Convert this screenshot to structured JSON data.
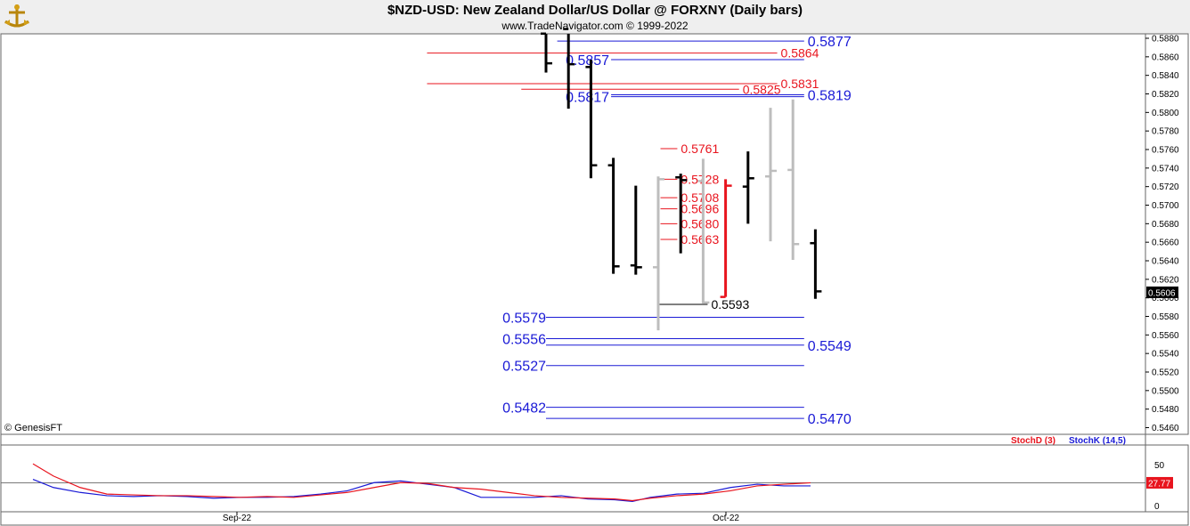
{
  "header": {
    "title": "$NZD-USD:  New Zealand Dollar/US Dollar @ FORXNY  (Daily bars)",
    "credit": "www.TradeNavigator.com © 1999-2022"
  },
  "copyright": "© GenesisFT",
  "colors": {
    "blue_level": "#1a1ad6",
    "red_level": "#e8141e",
    "bar_black": "#000000",
    "bar_gray": "#bdbdbd",
    "bar_red": "#e8141e"
  },
  "chart_data": [
    {
      "type": "ohlc",
      "ylim": [
        0.5455,
        0.5893
      ],
      "y_ticks": [
        "0.5880",
        "0.5860",
        "0.5840",
        "0.5820",
        "0.5800",
        "0.5780",
        "0.5760",
        "0.5740",
        "0.5720",
        "0.5700",
        "0.5680",
        "0.5660",
        "0.5640",
        "0.5620",
        "0.5600",
        "0.5580",
        "0.5560",
        "0.5540",
        "0.5520",
        "0.5500",
        "0.5480",
        "0.5460"
      ],
      "last_price": "0.5606",
      "x_labels": [
        "Sep-22",
        "Oct-22"
      ],
      "bars": [
        {
          "open": 0.5885,
          "high": 0.5895,
          "low": 0.5843,
          "close": 0.5853,
          "color": "black"
        },
        {
          "open": 0.589,
          "high": 0.5895,
          "low": 0.5804,
          "close": 0.5852,
          "color": "black"
        },
        {
          "open": 0.5849,
          "high": 0.5857,
          "low": 0.5729,
          "close": 0.5743,
          "color": "black"
        },
        {
          "open": 0.5743,
          "high": 0.5751,
          "low": 0.5626,
          "close": 0.5634,
          "color": "black"
        },
        {
          "open": 0.5635,
          "high": 0.5721,
          "low": 0.5625,
          "close": 0.5633,
          "color": "black"
        },
        {
          "open": 0.5633,
          "high": 0.5731,
          "low": 0.5565,
          "close": 0.5728,
          "color": "gray"
        },
        {
          "open": 0.573,
          "high": 0.5734,
          "low": 0.5648,
          "close": 0.5727,
          "color": "black"
        },
        {
          "open": 0.5726,
          "high": 0.575,
          "low": 0.5594,
          "close": 0.5595,
          "color": "gray"
        },
        {
          "open": 0.5601,
          "high": 0.5728,
          "low": 0.5601,
          "close": 0.5721,
          "color": "red"
        },
        {
          "open": 0.572,
          "high": 0.5758,
          "low": 0.568,
          "close": 0.5729,
          "color": "black"
        },
        {
          "open": 0.5731,
          "high": 0.5805,
          "low": 0.5661,
          "close": 0.5737,
          "color": "gray"
        },
        {
          "open": 0.5738,
          "high": 0.5814,
          "low": 0.5641,
          "close": 0.5658,
          "color": "gray"
        },
        {
          "open": 0.5659,
          "high": 0.5674,
          "low": 0.5599,
          "close": 0.5607,
          "color": "black"
        }
      ],
      "levels": [
        {
          "label": "0.5877",
          "value": 0.5877,
          "color": "blue",
          "x_from": 0.5,
          "x_to": 11.5,
          "label_side": "right"
        },
        {
          "label": "0.5864",
          "value": 0.5864,
          "color": "red",
          "x_from": -5.3,
          "x_to": 10.3,
          "label_side": "right_inline"
        },
        {
          "label": "0.5857",
          "value": 0.5857,
          "color": "blue",
          "x_from": 2.9,
          "x_to": 11.5,
          "label_side": "left"
        },
        {
          "label": "0.5831",
          "value": 0.5831,
          "color": "red",
          "x_from": -5.3,
          "x_to": 10.3,
          "label_side": "right_inline"
        },
        {
          "label": "0.5825",
          "value": 0.5825,
          "color": "red",
          "x_from": -1.1,
          "x_to": 8.6,
          "label_side": "right_inline"
        },
        {
          "label": "0.5819",
          "value": 0.5819,
          "color": "blue",
          "x_from": 2.9,
          "x_to": 11.5,
          "label_side": "right"
        },
        {
          "label": "0.5817",
          "value": 0.5817,
          "color": "blue",
          "x_from": 2.9,
          "x_to": 11.5,
          "label_side": "left"
        },
        {
          "label": "0.5761",
          "value": 0.5761,
          "color": "red",
          "x_from": 5.1,
          "x_to": 5.85,
          "label_side": "right_inline"
        },
        {
          "label": "0.5728",
          "value": 0.5728,
          "color": "red",
          "x_from": 5.1,
          "x_to": 5.85,
          "label_side": "right_inline"
        },
        {
          "label": "0.5708",
          "value": 0.5708,
          "color": "red",
          "x_from": 5.1,
          "x_to": 5.85,
          "label_side": "right_inline"
        },
        {
          "label": "0.5696",
          "value": 0.5696,
          "color": "red",
          "x_from": 5.1,
          "x_to": 5.85,
          "label_side": "right_inline"
        },
        {
          "label": "0.5680",
          "value": 0.568,
          "color": "red",
          "x_from": 5.1,
          "x_to": 5.85,
          "label_side": "right_inline"
        },
        {
          "label": "0.5663",
          "value": 0.5663,
          "color": "red",
          "x_from": 5.1,
          "x_to": 5.85,
          "label_side": "right_inline"
        },
        {
          "label": "0.5593",
          "value": 0.5593,
          "color": "black",
          "x_from": 5.0,
          "x_to": 7.2,
          "label_side": "right_inline"
        },
        {
          "label": "0.5579",
          "value": 0.5579,
          "color": "blue",
          "x_from": 0.0,
          "x_to": 11.5,
          "label_side": "left"
        },
        {
          "label": "0.5556",
          "value": 0.5556,
          "color": "blue",
          "x_from": 0.0,
          "x_to": 11.5,
          "label_side": "left"
        },
        {
          "label": "0.5549",
          "value": 0.5549,
          "color": "blue",
          "x_from": 0.0,
          "x_to": 11.5,
          "label_side": "right"
        },
        {
          "label": "0.5527",
          "value": 0.5527,
          "color": "blue",
          "x_from": 0.0,
          "x_to": 11.5,
          "label_side": "left"
        },
        {
          "label": "0.5482",
          "value": 0.5482,
          "color": "blue",
          "x_from": 0.0,
          "x_to": 11.5,
          "label_side": "left"
        },
        {
          "label": "0.5470",
          "value": 0.547,
          "color": "blue",
          "x_from": 0.0,
          "x_to": 11.5,
          "label_side": "right"
        }
      ]
    },
    {
      "type": "line",
      "legend": [
        {
          "name": "StochD (3)",
          "color": "#e8141e"
        },
        {
          "name": "StochK (14,5)",
          "color": "#1a1ad6"
        }
      ],
      "y_ticks": [
        "50",
        "0"
      ],
      "last_value": "27.77",
      "ylim": [
        0,
        100
      ],
      "x_positions": [
        37,
        60,
        90,
        120,
        150,
        180,
        210,
        240,
        270,
        300,
        330,
        360,
        390,
        420,
        450,
        480,
        510,
        540,
        570,
        600,
        630,
        660,
        690,
        710,
        730,
        760,
        790,
        820,
        850,
        880,
        910
      ],
      "series": [
        {
          "name": "StochK (14,5)",
          "color": "#1a1ad6",
          "values": [
            32,
            22,
            16,
            12,
            11,
            12,
            11,
            9,
            10,
            10,
            11,
            14,
            18,
            28,
            30,
            26,
            22,
            10,
            10,
            10,
            12,
            8,
            7,
            5,
            10,
            14,
            15,
            22,
            26,
            24,
            24
          ]
        },
        {
          "name": "StochD (3)",
          "color": "#e8141e",
          "values": [
            51,
            36,
            22,
            14,
            13,
            12,
            12,
            11,
            10,
            11,
            10,
            13,
            16,
            22,
            28,
            27,
            22,
            20,
            16,
            12,
            10,
            9,
            8,
            6,
            9,
            12,
            14,
            18,
            24,
            26,
            27.77
          ]
        }
      ]
    }
  ]
}
